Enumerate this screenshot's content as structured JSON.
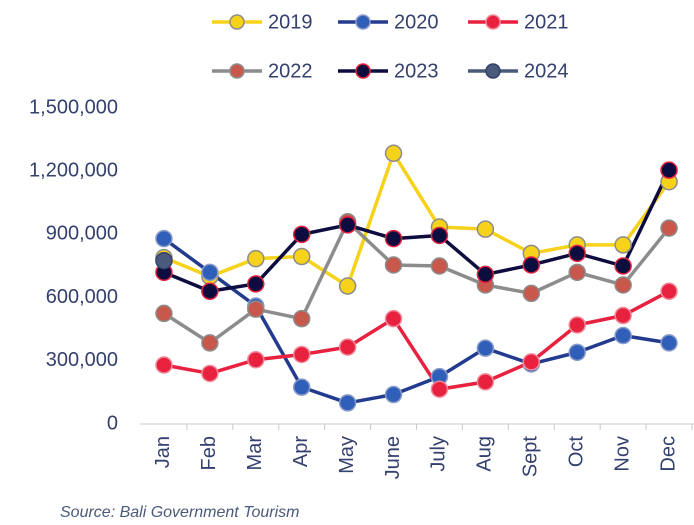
{
  "chart_data": {
    "type": "line",
    "categories": [
      "Jan",
      "Feb",
      "Mar",
      "Apr",
      "May",
      "June",
      "July",
      "Aug",
      "Sept",
      "Oct",
      "Nov",
      "Dec"
    ],
    "series": [
      {
        "name": "2019",
        "color": "#f7d21a",
        "marker_color": "#f7d21a",
        "marker_edge": "#8c8c8c",
        "values": [
          790000,
          700000,
          785000,
          795000,
          655000,
          1285000,
          935000,
          925000,
          810000,
          850000,
          850000,
          1150000
        ]
      },
      {
        "name": "2020",
        "color": "#223b8f",
        "marker_color": "#2f5fb8",
        "marker_edge": "#8a9bc8",
        "values": [
          880000,
          720000,
          560000,
          175000,
          100000,
          140000,
          225000,
          360000,
          285000,
          340000,
          420000,
          385000
        ]
      },
      {
        "name": "2021",
        "color": "#e8213f",
        "marker_color": "#e8213f",
        "marker_edge": "#f08a9a",
        "values": [
          280000,
          240000,
          305000,
          330000,
          365000,
          500000,
          165000,
          200000,
          295000,
          470000,
          515000,
          630000
        ]
      },
      {
        "name": "2022",
        "color": "#8c8c8c",
        "marker_color": "#c8584c",
        "marker_edge": "#8c8c8c",
        "values": [
          525000,
          385000,
          545000,
          500000,
          960000,
          755000,
          750000,
          660000,
          620000,
          720000,
          660000,
          930000
        ]
      },
      {
        "name": "2023",
        "color": "#0c0c3e",
        "marker_color": "#0c0c3e",
        "marker_edge": "#e8213f",
        "values": [
          720000,
          630000,
          665000,
          900000,
          945000,
          880000,
          895000,
          710000,
          755000,
          810000,
          750000,
          1205000
        ]
      },
      {
        "name": "2024",
        "color": "#4a5a7a",
        "marker_color": "#4a5a7a",
        "marker_edge": "#34406e",
        "values": [
          775000,
          null,
          null,
          null,
          null,
          null,
          null,
          null,
          null,
          null,
          null,
          null
        ]
      }
    ],
    "ylim": [
      0,
      1500000
    ],
    "yticks": [
      0,
      {
        "value": 300000,
        "label": "300,000"
      },
      {
        "value": 600000,
        "label": "600,000"
      },
      {
        "value": 900000,
        "label": "900,000"
      },
      {
        "value": 1200000,
        "label": "1,200,000"
      },
      {
        "value": 1500000,
        "label": "1,500,000"
      }
    ],
    "source": "Source: Bali Government Tourism"
  }
}
